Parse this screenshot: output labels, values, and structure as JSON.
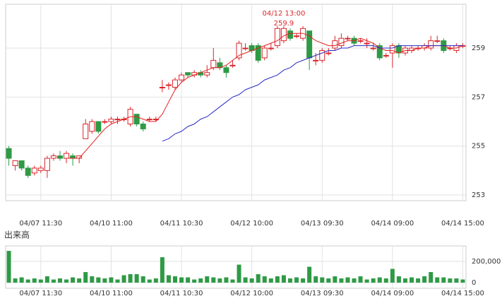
{
  "chart_data": [
    {
      "type": "candlestick",
      "categories": [
        null,
        null,
        null,
        null,
        null,
        "04/07 11:30",
        null,
        null,
        null,
        null,
        null,
        null,
        null,
        null,
        null,
        null,
        "04/10 11:00",
        null,
        null,
        null,
        null,
        null,
        null,
        null,
        null,
        null,
        null,
        "04/11 10:30",
        null,
        null,
        null,
        null,
        null,
        null,
        null,
        null,
        null,
        null,
        "04/12 10:00",
        null,
        null,
        null,
        null,
        null,
        null,
        null,
        null,
        null,
        null,
        "04/13 09:30",
        null,
        null,
        null,
        null,
        null,
        null,
        null,
        null,
        null,
        null,
        "04/14 09:00",
        null,
        null,
        null,
        null,
        null,
        null,
        null,
        null,
        null,
        null,
        "04/14 15:00"
      ],
      "open": [
        254.9,
        254.2,
        254.4,
        254.1,
        253.9,
        254.0,
        254.0,
        254.5,
        254.6,
        254.5,
        254.6,
        254.5,
        255.3,
        255.6,
        256.0,
        256.0,
        256.0,
        256.1,
        256.1,
        255.9,
        256.3,
        255.9,
        256.1,
        256.1,
        257.4,
        257.5,
        257.4,
        257.7,
        258.0,
        257.9,
        258.0,
        257.9,
        258.2,
        258.4,
        258.2,
        258.3,
        258.6,
        259.0,
        259.1,
        259.1,
        258.6,
        259.0,
        259.1,
        259.3,
        259.7,
        259.5,
        259.4,
        259.7,
        258.5,
        258.5,
        258.8,
        259.0,
        259.1,
        259.4,
        259.4,
        259.3,
        259.2,
        259.0,
        259.1,
        258.7,
        258.8,
        259.1,
        258.8,
        258.9,
        259.0,
        259.0,
        259.0,
        259.3,
        259.3,
        259.0,
        258.9,
        259.1
      ],
      "high": [
        255.0,
        254.4,
        254.4,
        254.2,
        254.2,
        254.2,
        254.6,
        254.7,
        254.8,
        254.8,
        254.7,
        254.6,
        256.1,
        256.1,
        256.0,
        256.1,
        256.2,
        256.2,
        256.2,
        256.6,
        256.3,
        256.0,
        256.2,
        256.2,
        257.7,
        257.6,
        257.8,
        258.0,
        258.0,
        258.1,
        258.1,
        258.3,
        259.0,
        258.6,
        258.3,
        258.5,
        259.3,
        259.2,
        259.2,
        259.2,
        259.1,
        259.2,
        259.9,
        259.9,
        259.8,
        259.6,
        259.9,
        259.7,
        258.8,
        259.0,
        259.0,
        259.5,
        259.6,
        259.5,
        259.5,
        259.4,
        259.4,
        259.2,
        259.2,
        258.8,
        259.2,
        259.2,
        259.1,
        259.1,
        259.1,
        259.2,
        259.5,
        259.5,
        259.4,
        259.1,
        259.2,
        259.2
      ],
      "low": [
        254.2,
        254.0,
        254.0,
        253.7,
        253.8,
        253.9,
        253.7,
        254.4,
        254.4,
        254.3,
        254.2,
        254.3,
        255.3,
        255.5,
        255.5,
        255.9,
        255.9,
        255.9,
        256.0,
        255.8,
        255.8,
        255.6,
        256.0,
        256.0,
        257.2,
        257.3,
        257.3,
        257.6,
        257.8,
        257.8,
        257.8,
        257.8,
        258.1,
        258.1,
        257.8,
        258.2,
        258.5,
        258.9,
        258.8,
        258.4,
        258.5,
        258.9,
        259.0,
        259.2,
        259.3,
        259.4,
        259.3,
        258.1,
        258.3,
        258.4,
        258.7,
        258.9,
        259.0,
        259.3,
        259.1,
        259.2,
        259.0,
        258.9,
        258.5,
        258.6,
        258.2,
        258.6,
        258.7,
        258.8,
        258.9,
        258.9,
        258.9,
        259.2,
        258.8,
        258.9,
        258.8,
        259.0
      ],
      "close": [
        254.5,
        254.4,
        254.1,
        253.8,
        254.1,
        254.1,
        254.5,
        254.6,
        254.5,
        254.7,
        254.5,
        254.6,
        255.9,
        256.0,
        255.6,
        256.0,
        256.1,
        256.1,
        256.1,
        256.5,
        255.9,
        255.7,
        256.1,
        256.1,
        257.4,
        257.5,
        257.7,
        257.9,
        257.9,
        258.0,
        257.9,
        258.0,
        258.5,
        258.2,
        258.0,
        258.3,
        259.2,
        259.0,
        258.9,
        258.5,
        259.0,
        259.0,
        259.8,
        259.8,
        259.4,
        259.5,
        259.8,
        258.6,
        258.5,
        258.9,
        258.8,
        259.3,
        259.4,
        259.4,
        259.2,
        259.3,
        259.2,
        259.0,
        258.6,
        258.7,
        259.1,
        258.8,
        259.0,
        259.0,
        259.0,
        259.1,
        259.3,
        259.3,
        258.9,
        259.0,
        259.1,
        259.1
      ],
      "up_color": "#d9262b",
      "down_color": "#2f9a45",
      "series": [
        {
          "color": "#e3201f",
          "values": [
            null,
            null,
            null,
            null,
            null,
            null,
            null,
            null,
            null,
            254.5,
            254.5,
            254.5,
            254.8,
            255.1,
            255.4,
            255.7,
            255.9,
            256.0,
            256.1,
            256.2,
            256.2,
            256.1,
            256.0,
            256.0,
            256.3,
            256.8,
            257.3,
            257.6,
            257.8,
            257.9,
            258.0,
            258.1,
            258.2,
            258.2,
            258.3,
            258.5,
            258.7,
            258.8,
            258.9,
            259.0,
            259.1,
            259.2,
            259.3,
            259.5,
            259.6,
            259.6,
            259.6,
            259.5,
            259.3,
            259.2,
            259.1,
            259.1,
            259.2,
            259.3,
            259.3,
            259.4,
            259.3,
            259.2,
            259.0,
            258.9,
            258.9,
            258.8,
            258.9,
            258.9,
            259.0,
            259.0,
            259.1,
            259.1,
            259.1,
            259.0,
            259.0,
            259.1
          ]
        },
        {
          "color": "#2a2ac4",
          "values": [
            null,
            null,
            null,
            null,
            null,
            null,
            null,
            null,
            null,
            null,
            null,
            null,
            null,
            null,
            null,
            null,
            null,
            null,
            null,
            null,
            null,
            null,
            null,
            null,
            255.2,
            255.3,
            255.5,
            255.6,
            255.8,
            255.9,
            256.1,
            256.2,
            256.4,
            256.6,
            256.8,
            257.0,
            257.1,
            257.3,
            257.4,
            257.5,
            257.7,
            257.8,
            257.9,
            258.1,
            258.2,
            258.4,
            258.5,
            258.6,
            258.7,
            258.8,
            258.9,
            258.9,
            259.0,
            259.0,
            259.1,
            259.1,
            259.1,
            259.1,
            259.0,
            259.0,
            259.0,
            259.1,
            259.1,
            259.1,
            259.1,
            259.1,
            259.1,
            259.1,
            259.1,
            259.1,
            259.1,
            259.1
          ]
        }
      ],
      "annotation": {
        "time": "04/12 13:00",
        "index": 43,
        "value": 259.9,
        "color": "#d9262b"
      },
      "ylim": [
        252.77,
        260.79
      ],
      "yticks": [
        253,
        255,
        257,
        259
      ],
      "grid": true
    },
    {
      "type": "bar",
      "title": "出来高",
      "categories": [
        null,
        null,
        null,
        null,
        null,
        "04/07 11:30",
        null,
        null,
        null,
        null,
        null,
        null,
        null,
        null,
        null,
        null,
        "04/10 11:00",
        null,
        null,
        null,
        null,
        null,
        null,
        null,
        null,
        null,
        null,
        "04/11 10:30",
        null,
        null,
        null,
        null,
        null,
        null,
        null,
        null,
        null,
        null,
        "04/12 10:00",
        null,
        null,
        null,
        null,
        null,
        null,
        null,
        null,
        null,
        null,
        "04/13 09:30",
        null,
        null,
        null,
        null,
        null,
        null,
        null,
        null,
        null,
        null,
        "04/14 09:00",
        null,
        null,
        null,
        null,
        null,
        null,
        null,
        null,
        null,
        null,
        "04/14 15:00"
      ],
      "values": [
        300000,
        40000,
        50000,
        30000,
        40000,
        30000,
        60000,
        30000,
        40000,
        30000,
        50000,
        40000,
        100000,
        60000,
        50000,
        40000,
        50000,
        30000,
        70000,
        80000,
        80000,
        60000,
        30000,
        40000,
        240000,
        70000,
        60000,
        50000,
        50000,
        30000,
        40000,
        60000,
        50000,
        40000,
        50000,
        30000,
        170000,
        50000,
        40000,
        80000,
        60000,
        40000,
        60000,
        70000,
        40000,
        50000,
        40000,
        150000,
        60000,
        50000,
        40000,
        60000,
        40000,
        50000,
        40000,
        60000,
        30000,
        40000,
        50000,
        40000,
        130000,
        60000,
        40000,
        50000,
        40000,
        60000,
        100000,
        50000,
        50000,
        40000,
        40000,
        30000
      ],
      "color": "#2f9a45",
      "ylim": [
        -53000,
        347000
      ],
      "yticks": [
        0,
        {
          "value": 200000,
          "label": "200,000"
        }
      ],
      "grid": true
    }
  ]
}
